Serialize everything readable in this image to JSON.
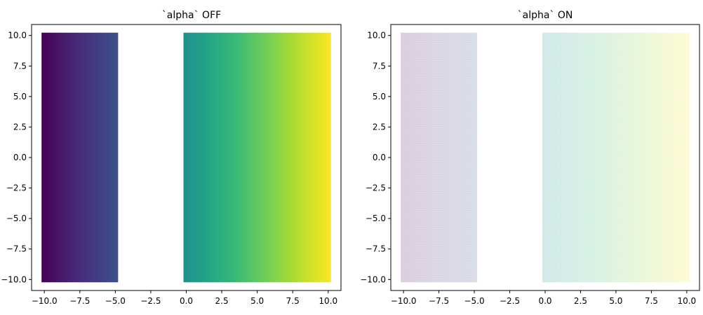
{
  "chart_data": [
    {
      "type": "scatter",
      "title": "`alpha` OFF",
      "xlabel": "",
      "ylabel": "",
      "xlim": [
        -10.9,
        10.9
      ],
      "ylim": [
        -10.9,
        10.9
      ],
      "xticks": [
        -10.0,
        -7.5,
        -5.0,
        -2.5,
        0.0,
        2.5,
        5.0,
        7.5,
        10.0
      ],
      "yticks": [
        -10.0,
        -7.5,
        -5.0,
        -2.5,
        0.0,
        2.5,
        5.0,
        7.5,
        10.0
      ],
      "xtick_labels": [
        "−10.0",
        "−7.5",
        "−5.0",
        "−2.5",
        "0.0",
        "2.5",
        "5.0",
        "7.5",
        "10.0"
      ],
      "ytick_labels": [
        "−10.0",
        "−7.5",
        "−5.0",
        "−2.5",
        "0.0",
        "2.5",
        "5.0",
        "7.5",
        "10.0"
      ],
      "series": [
        {
          "x_range": [
            -10.0,
            -5.0
          ],
          "y_range": [
            -10.0,
            10.0
          ],
          "colormap": "viridis",
          "color_by": "x",
          "alpha": 1.0
        },
        {
          "x_range": [
            0.0,
            10.0
          ],
          "y_range": [
            -10.0,
            10.0
          ],
          "colormap": "viridis",
          "color_by": "x",
          "alpha": 1.0
        }
      ],
      "grid": false
    },
    {
      "type": "scatter",
      "title": "`alpha` ON",
      "xlabel": "",
      "ylabel": "",
      "xlim": [
        -10.9,
        10.9
      ],
      "ylim": [
        -10.9,
        10.9
      ],
      "xticks": [
        -10.0,
        -7.5,
        -5.0,
        -2.5,
        0.0,
        2.5,
        5.0,
        7.5,
        10.0
      ],
      "yticks": [
        -10.0,
        -7.5,
        -5.0,
        -2.5,
        0.0,
        2.5,
        5.0,
        7.5,
        10.0
      ],
      "xtick_labels": [
        "−10.0",
        "−7.5",
        "−5.0",
        "−2.5",
        "0.0",
        "2.5",
        "5.0",
        "7.5",
        "10.0"
      ],
      "ytick_labels": [
        "−10.0",
        "−7.5",
        "−5.0",
        "−2.5",
        "0.0",
        "2.5",
        "5.0",
        "7.5",
        "10.0"
      ],
      "series": [
        {
          "x_range": [
            -10.0,
            -5.0
          ],
          "y_range": [
            -10.0,
            10.0
          ],
          "colormap": "viridis",
          "color_by": "x",
          "alpha": 0.2
        },
        {
          "x_range": [
            0.0,
            10.0
          ],
          "y_range": [
            -10.0,
            10.0
          ],
          "colormap": "viridis",
          "color_by": "x",
          "alpha": 0.2
        }
      ],
      "grid": false
    }
  ],
  "colors": {
    "viridis": [
      "#440154",
      "#482878",
      "#3e4989",
      "#31688e",
      "#26828e",
      "#1f9e89",
      "#35b779",
      "#6ece58",
      "#b5de2b",
      "#fde725"
    ]
  }
}
